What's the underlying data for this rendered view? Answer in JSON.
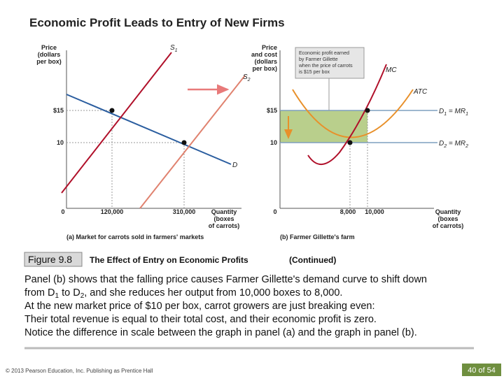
{
  "header": {
    "title": "Economic Profit Leads to Entry of New Firms"
  },
  "panel_a": {
    "y_label": [
      "Price",
      "(dollars",
      "per box)"
    ],
    "y_ticks": [
      "$15",
      "10"
    ],
    "origin": "0",
    "x_ticks": [
      "120,000",
      "310,000"
    ],
    "x_label": [
      "Quantity",
      "(boxes",
      "of carrots)"
    ],
    "curves": {
      "s1": [
        "S",
        "1"
      ],
      "s2": [
        "S",
        "2"
      ],
      "d": "D"
    },
    "caption": "(a) Market for carrots sold in farmers' markets"
  },
  "panel_b": {
    "y_label": [
      "Price",
      "and cost",
      "(dollars",
      "per box)"
    ],
    "y_ticks": [
      "$15",
      "10"
    ],
    "origin": "0",
    "x_ticks": [
      "8,000",
      "10,000"
    ],
    "x_label": [
      "Quantity",
      "(boxes",
      "of carrots)"
    ],
    "callout": [
      "Economic profit earned",
      "by Farmer Gillette",
      "when the price of carrots",
      "is $15 per box"
    ],
    "curves": {
      "mc": "MC",
      "atc": "ATC",
      "d1": [
        "D",
        "1",
        " = MR",
        "1"
      ],
      "d2": [
        "D",
        "2",
        " = MR",
        "2"
      ]
    },
    "caption": "(b) Farmer Gillette's farm"
  },
  "figure": {
    "label": "Figure 9.8",
    "title": "The Effect of Entry on Economic Profits",
    "note": "(Continued)"
  },
  "body": {
    "lines": [
      [
        "Panel (b) shows that the falling price causes Farmer Gillette's demand curve to shift down"
      ],
      [
        "from D",
        "1",
        " to D",
        "2",
        ", and she reduces her output from 10,000 boxes to 8,000."
      ],
      [
        "At the new market price of $10 per box, carrot growers are just breaking even:"
      ],
      [
        "Their total revenue is equal to their total cost, and their economic profit is zero."
      ],
      [
        "Notice the difference in scale between the graph in panel (a) and the graph in panel (b)."
      ]
    ]
  },
  "footer": {
    "copyright": "© 2013 Pearson Education, Inc. Publishing as Prentice Hall",
    "page": "40 of 54"
  }
}
